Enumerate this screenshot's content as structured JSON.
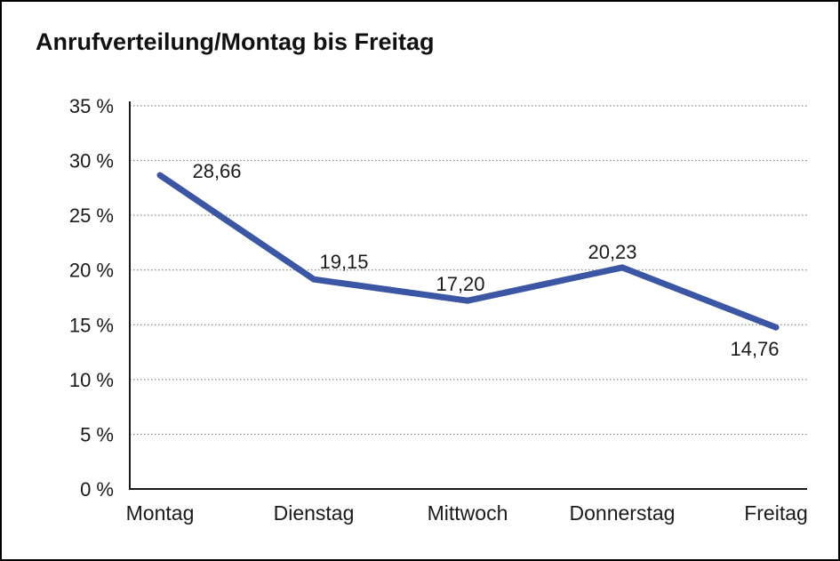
{
  "chart_data": {
    "type": "line",
    "title": "Anrufverteilung/Montag bis Freitag",
    "categories": [
      "Montag",
      "Dienstag",
      "Mittwoch",
      "Donnerstag",
      "Freitag"
    ],
    "values": [
      28.66,
      19.15,
      17.2,
      20.23,
      14.76
    ],
    "point_labels": [
      "28,66",
      "19,15",
      "17,20",
      "20,23",
      "14,76"
    ],
    "xlabel": "",
    "ylabel": "",
    "ylim": [
      0,
      35
    ],
    "ytick_step": 5,
    "ytick_labels": [
      "0 %",
      "5 %",
      "10 %",
      "15 %",
      "20 %",
      "25 %",
      "30 %",
      "35 %"
    ],
    "legend": "none",
    "grid": "horizontal-dotted",
    "colors": {
      "line": "#3A56A4",
      "axis": "#1a1a1a",
      "grid": "#6e6e6e",
      "text": "#1a1a1a",
      "background": "#ffffff",
      "frame_border": "#000000"
    }
  }
}
